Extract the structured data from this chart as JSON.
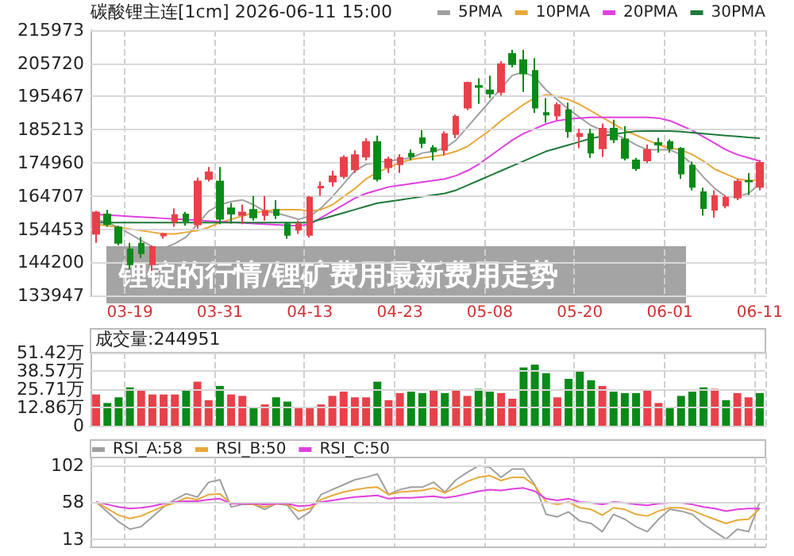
{
  "chart_data": [
    {
      "type": "candlestick",
      "title": "碳酸锂主连[1cm] 2026-06-11 15:00",
      "annotations": [
        "锂锭的行情/锂矿费用最新费用走势"
      ],
      "categories": [
        null,
        null,
        null,
        "03-19",
        null,
        null,
        null,
        null,
        null,
        null,
        null,
        "03-31",
        null,
        null,
        null,
        null,
        null,
        null,
        null,
        "04-13",
        null,
        null,
        null,
        null,
        null,
        null,
        null,
        "04-23",
        null,
        null,
        null,
        null,
        null,
        null,
        null,
        "05-08",
        null,
        null,
        null,
        null,
        null,
        null,
        null,
        "05-20",
        null,
        null,
        null,
        null,
        null,
        null,
        null,
        "06-01",
        null,
        null,
        null,
        null,
        null,
        null,
        null,
        "06-11"
      ],
      "colors": [
        "#e8414a",
        "#0a8a18",
        "#0a8a18",
        "#0a8a18",
        "#0a8a18",
        "#e8414a",
        "#e8414a",
        "#e8414a",
        "#0a8a18",
        "#e8414a",
        "#e8414a",
        "#0a8a18",
        "#0a8a18",
        "#e8414a",
        "#0a8a18",
        "#e8414a",
        "#0a8a18",
        "#0a8a18",
        "#e8414a",
        "#e8414a",
        "#e8414a",
        "#e8414a",
        "#e8414a",
        "#e8414a",
        "#e8414a",
        "#0a8a18",
        "#e8414a",
        "#e8414a",
        "#0a8a18",
        "#0a8a18",
        "#0a8a18",
        "#e8414a",
        "#e8414a",
        "#e8414a",
        "#0a8a18",
        "#0a8a18",
        "#e8414a",
        "#0a8a18",
        "#0a8a18",
        "#0a8a18",
        "#0a8a18",
        "#e8414a",
        "#0a8a18",
        "#e8414a",
        "#0a8a18",
        "#e8414a",
        "#0a8a18",
        "#0a8a18",
        "#0a8a18",
        "#e8414a",
        "#0a8a18",
        "#0a8a18",
        "#0a8a18",
        "#0a8a18",
        "#0a8a18",
        "#e8414a",
        "#e8414a",
        "#e8414a",
        "#0a8a18",
        "#e8414a"
      ],
      "ohlc": [
        [
          153015,
          160110,
          150210,
          159615
        ],
        [
          159000,
          160400,
          155160,
          156000
        ],
        [
          155000,
          155500,
          149400,
          150200
        ],
        [
          148200,
          150200,
          141960,
          143600
        ],
        [
          150000,
          152000,
          145500,
          147000
        ],
        [
          143600,
          149400,
          141500,
          148900
        ],
        [
          152500,
          153300,
          151500,
          153000
        ],
        [
          156800,
          160900,
          155160,
          158800
        ],
        [
          159000,
          159800,
          155500,
          157000
        ],
        [
          155950,
          170340,
          154650,
          169185
        ],
        [
          170000,
          173640,
          169185,
          172000
        ],
        [
          169185,
          173640,
          155970,
          157635
        ],
        [
          160900,
          162550,
          156160,
          159260
        ],
        [
          158800,
          162050,
          156000,
          159600
        ],
        [
          160400,
          164700,
          157100,
          158100
        ],
        [
          158800,
          164700,
          157100,
          160100
        ],
        [
          160400,
          163400,
          157600,
          158800
        ],
        [
          155985,
          156800,
          151530,
          152680
        ],
        [
          154300,
          157100,
          153000,
          156000
        ],
        [
          152680,
          164730,
          151860,
          164235
        ],
        [
          167300,
          169200,
          164700,
          167600
        ],
        [
          169200,
          172500,
          167600,
          170800
        ],
        [
          170822,
          177300,
          170000,
          176527
        ],
        [
          172940,
          178800,
          171800,
          177340
        ],
        [
          176850,
          182600,
          175700,
          181400
        ],
        [
          181400,
          183400,
          169200,
          170000
        ],
        [
          173600,
          176850,
          171800,
          176000
        ],
        [
          174500,
          177600,
          171800,
          176500
        ],
        [
          177800,
          179100,
          175700,
          177000
        ],
        [
          182600,
          185000,
          179500,
          181100
        ],
        [
          179500,
          180400,
          175700,
          178500
        ],
        [
          178950,
          184700,
          177300,
          183860
        ],
        [
          183860,
          189900,
          182600,
          189200
        ],
        [
          192000,
          200100,
          191200,
          199700
        ],
        [
          198700,
          201100,
          193200,
          198400
        ],
        [
          197400,
          201900,
          195000,
          196400
        ],
        [
          196900,
          206400,
          195800,
          205500
        ],
        [
          208600,
          209900,
          204500,
          205500
        ],
        [
          206700,
          209900,
          196900,
          202600
        ],
        [
          203400,
          207300,
          190400,
          192000
        ],
        [
          190400,
          195000,
          187400,
          189900
        ],
        [
          189560,
          193600,
          188100,
          192800
        ],
        [
          191200,
          193600,
          182700,
          184700
        ],
        [
          183200,
          185500,
          179500,
          183900
        ],
        [
          183860,
          185500,
          176500,
          178100
        ],
        [
          179460,
          187100,
          176800,
          185500
        ],
        [
          185500,
          188300,
          181100,
          182200
        ],
        [
          182200,
          186300,
          175700,
          176500
        ],
        [
          175700,
          176500,
          172500,
          173300
        ],
        [
          175700,
          180600,
          174900,
          178950
        ],
        [
          181100,
          182700,
          178100,
          180600
        ],
        [
          181400,
          182200,
          178100,
          179460
        ],
        [
          179300,
          179800,
          170000,
          171650
        ],
        [
          174100,
          175300,
          166400,
          167540
        ],
        [
          165870,
          167300,
          158600,
          160935
        ],
        [
          160440,
          166400,
          158000,
          164730
        ],
        [
          161760,
          165000,
          160900,
          164235
        ],
        [
          164235,
          170000,
          163400,
          169185
        ],
        [
          169400,
          171800,
          165000,
          169185
        ],
        [
          167540,
          175800,
          166400,
          174960
        ]
      ],
      "series": [
        {
          "type": "line",
          "name": "5PMA",
          "color": "#a0a0a0",
          "values": [
            157500,
            156500,
            155000,
            153000,
            151000,
            149000,
            148500,
            150000,
            152000,
            156000,
            160000,
            162000,
            163000,
            163500,
            162000,
            160000,
            159500,
            158500,
            157500,
            158500,
            161000,
            164500,
            168500,
            172500,
            174500,
            175000,
            175500,
            176000,
            176500,
            178000,
            178500,
            179500,
            182000,
            186000,
            190000,
            194000,
            198000,
            202000,
            203000,
            201500,
            197500,
            194500,
            191500,
            189000,
            186500,
            185000,
            184000,
            182500,
            180500,
            179000,
            179000,
            179000,
            177500,
            174500,
            170500,
            167000,
            164500,
            164500,
            165500,
            168500
          ]
        },
        {
          "type": "line",
          "name": "10PMA",
          "color": "#e8a93a",
          "values": [
            156000,
            155500,
            155000,
            154500,
            154000,
            153500,
            153000,
            153000,
            153500,
            154000,
            155000,
            156500,
            157500,
            158500,
            159500,
            160000,
            160500,
            160500,
            160500,
            160000,
            160500,
            162000,
            164500,
            167000,
            170000,
            172000,
            173500,
            175000,
            176000,
            176500,
            177000,
            177500,
            178500,
            180000,
            182500,
            185000,
            188000,
            190500,
            193000,
            195000,
            196000,
            195500,
            194500,
            193000,
            191000,
            189000,
            187000,
            185000,
            183500,
            182000,
            180500,
            179500,
            179000,
            177500,
            175500,
            173000,
            171500,
            170000,
            169500,
            169500
          ]
        },
        {
          "type": "line",
          "name": "20PMA",
          "color": "#e040e0",
          "values": [
            159000,
            158800,
            158600,
            158400,
            158200,
            158000,
            157800,
            157600,
            157400,
            157200,
            157000,
            156800,
            156600,
            156400,
            156200,
            156000,
            155800,
            155600,
            155500,
            156000,
            158000,
            160000,
            162000,
            164000,
            165500,
            166500,
            167500,
            168000,
            168500,
            169000,
            169500,
            170000,
            171000,
            172500,
            174500,
            177000,
            179500,
            182000,
            184000,
            185500,
            187000,
            188000,
            188500,
            188800,
            189000,
            189000,
            189000,
            189000,
            189000,
            189000,
            188800,
            188000,
            186500,
            185000,
            183000,
            181000,
            179000,
            177500,
            176500,
            175500
          ]
        },
        {
          "type": "line",
          "name": "30PMA",
          "color": "#1f7a3a",
          "values": [
            156500,
            156500,
            156500,
            156500,
            156500,
            156500,
            156500,
            156500,
            156500,
            156500,
            156500,
            156500,
            156500,
            156500,
            156500,
            156500,
            156500,
            156500,
            156500,
            156500,
            157500,
            158500,
            159500,
            160500,
            161500,
            162500,
            163000,
            163500,
            164000,
            164500,
            165000,
            165500,
            166500,
            168000,
            169500,
            171000,
            172500,
            174000,
            175500,
            177000,
            178500,
            179500,
            180500,
            181500,
            182500,
            183200,
            183800,
            184300,
            184700,
            184800,
            184800,
            184800,
            184600,
            184300,
            184000,
            183700,
            183400,
            183100,
            182800,
            182600
          ]
        }
      ],
      "ylim": [
        133947,
        215973
      ],
      "yticks": [
        133947,
        144200,
        154453,
        164707,
        174960,
        185213,
        195467,
        205720,
        215973
      ],
      "grid": true,
      "legend": "top right",
      "marker": "none"
    },
    {
      "type": "bar",
      "title": "成交量:244951",
      "categories": [
        null,
        null,
        null,
        null,
        null,
        null,
        null,
        null,
        null,
        null,
        null,
        null,
        null,
        null,
        null,
        null,
        null,
        null,
        null,
        null,
        null,
        null,
        null,
        null,
        null,
        null,
        null,
        null,
        null,
        null,
        null,
        null,
        null,
        null,
        null,
        null,
        null,
        null,
        null,
        null,
        null,
        null,
        null,
        null,
        null,
        null,
        null,
        null,
        null,
        null,
        null,
        null,
        null,
        null,
        null,
        null,
        null,
        null,
        null,
        null
      ],
      "values": [
        22,
        16,
        20,
        27,
        25,
        22,
        22,
        22,
        25,
        31,
        18,
        28,
        22,
        21,
        13,
        15,
        20,
        17,
        13,
        13,
        15,
        21,
        24,
        20,
        20,
        31,
        18,
        23,
        24,
        23,
        25,
        23,
        25,
        21,
        26,
        24,
        23,
        19,
        41,
        43,
        37,
        20,
        33,
        39,
        32,
        28,
        24,
        23,
        23,
        25,
        16,
        13,
        21,
        24,
        27,
        26,
        18,
        23,
        20,
        23
      ],
      "colors": [
        "#e8414a",
        "#0a8a18",
        "#0a8a18",
        "#0a8a18",
        "#e8414a",
        "#e8414a",
        "#e8414a",
        "#e8414a",
        "#0a8a18",
        "#e8414a",
        "#e8414a",
        "#0a8a18",
        "#e8414a",
        "#e8414a",
        "#0a8a18",
        "#e8414a",
        "#0a8a18",
        "#0a8a18",
        "#e8414a",
        "#e8414a",
        "#e8414a",
        "#e8414a",
        "#e8414a",
        "#e8414a",
        "#e8414a",
        "#0a8a18",
        "#e8414a",
        "#e8414a",
        "#0a8a18",
        "#0a8a18",
        "#e8414a",
        "#0a8a18",
        "#e8414a",
        "#e8414a",
        "#0a8a18",
        "#0a8a18",
        "#e8414a",
        "#e8414a",
        "#0a8a18",
        "#0a8a18",
        "#0a8a18",
        "#e8414a",
        "#0a8a18",
        "#0a8a18",
        "#0a8a18",
        "#e8414a",
        "#0a8a18",
        "#0a8a18",
        "#0a8a18",
        "#e8414a",
        "#e8414a",
        "#0a8a18",
        "#0a8a18",
        "#0a8a18",
        "#0a8a18",
        "#e8414a",
        "#0a8a18",
        "#e8414a",
        "#e8414a",
        "#0a8a18"
      ],
      "ylim": [
        0,
        51.42
      ],
      "yticks": [
        0,
        {
          "value": 12.86,
          "label": "12.86万"
        },
        {
          "value": 25.71,
          "label": "25.71万"
        },
        {
          "value": 38.57,
          "label": "38.57万"
        },
        {
          "value": 51.42,
          "label": "51.42万"
        }
      ],
      "grid": true
    },
    {
      "type": "line",
      "categories": [
        null,
        null,
        null,
        null,
        null,
        null,
        null,
        null,
        null,
        null,
        null,
        null,
        null,
        null,
        null,
        null,
        null,
        null,
        null,
        null,
        null,
        null,
        null,
        null,
        null,
        null,
        null,
        null,
        null,
        null,
        null,
        null,
        null,
        null,
        null,
        null,
        null,
        null,
        null,
        null,
        null,
        null,
        null,
        null,
        null,
        null,
        null,
        null,
        null,
        null,
        null,
        null,
        null,
        null,
        null,
        null,
        null,
        null,
        null,
        null
      ],
      "series": [
        {
          "name": "RSI_A:58",
          "color": "#a0a0a0",
          "values": [
            58,
            46,
            34,
            25,
            28,
            40,
            52,
            61,
            68,
            64,
            82,
            85,
            52,
            55,
            55,
            49,
            56,
            54,
            37,
            46,
            67,
            73,
            79,
            85,
            88,
            92,
            67,
            73,
            76,
            76,
            82,
            70,
            85,
            94,
            102,
            100,
            88,
            98,
            98,
            79,
            43,
            40,
            46,
            35,
            32,
            22,
            43,
            37,
            28,
            22,
            37,
            49,
            47,
            43,
            31,
            22,
            13,
            25,
            22,
            58
          ]
        },
        {
          "name": "RSI_B:50",
          "color": "#e8a93a",
          "values": [
            58,
            50,
            42,
            38,
            41,
            47,
            53,
            57,
            63,
            61,
            67,
            68,
            56,
            56,
            55,
            52,
            56,
            55,
            47,
            50,
            61,
            66,
            70,
            73,
            75,
            76,
            67,
            70,
            71,
            72,
            75,
            69,
            76,
            83,
            88,
            90,
            84,
            88,
            88,
            78,
            58,
            55,
            58,
            51,
            49,
            42,
            51,
            49,
            43,
            41,
            47,
            51,
            51,
            48,
            42,
            37,
            32,
            36,
            37,
            50
          ]
        },
        {
          "name": "RSI_C:50",
          "color": "#e040e0",
          "values": [
            58,
            55,
            52,
            50,
            51,
            53,
            56,
            58,
            59,
            59,
            61,
            62,
            56,
            56,
            56,
            55,
            56,
            56,
            53,
            54,
            58,
            60,
            62,
            64,
            65,
            66,
            62,
            63,
            63,
            64,
            65,
            63,
            65,
            68,
            71,
            73,
            72,
            74,
            75,
            71,
            62,
            60,
            62,
            58,
            57,
            55,
            58,
            57,
            55,
            54,
            56,
            57,
            57,
            55,
            52,
            50,
            47,
            49,
            50,
            50
          ]
        }
      ],
      "ylim": [
        4,
        112
      ],
      "yticks": [
        13,
        58,
        102
      ],
      "grid": true,
      "legend": "top left",
      "marker": "none"
    }
  ]
}
